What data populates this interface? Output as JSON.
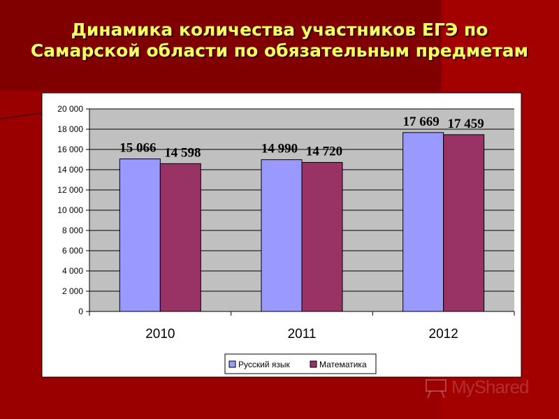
{
  "slide": {
    "title_line1": "Динамика количества участников ЕГЭ по",
    "title_line2": "Самарской области по обязательным предметам",
    "watermark": "MyShared"
  },
  "colors": {
    "background": "#a30000",
    "title": "#ffff66",
    "plot_area": "#c0c0c0",
    "series_1": "#9999ff",
    "series_2": "#993366"
  },
  "chart_data": {
    "type": "bar",
    "title": "",
    "xlabel": "",
    "ylabel": "",
    "categories": [
      "2010",
      "2011",
      "2012"
    ],
    "series": [
      {
        "name": "Русский язык",
        "values": [
          15066,
          14990,
          17669
        ],
        "labels": [
          "15 066",
          "14 990",
          "17 669"
        ],
        "color": "#9999ff"
      },
      {
        "name": "Математика",
        "values": [
          14598,
          14720,
          17459
        ],
        "labels": [
          "14 598",
          "14 720",
          "17 459"
        ],
        "color": "#993366"
      }
    ],
    "ylim": [
      0,
      20000
    ],
    "yticks": [
      0,
      2000,
      4000,
      6000,
      8000,
      10000,
      12000,
      14000,
      16000,
      18000,
      20000
    ],
    "ytick_labels": [
      "0",
      "2 000",
      "4 000",
      "6 000",
      "8 000",
      "10 000",
      "12 000",
      "14 000",
      "16 000",
      "18 000",
      "20 000"
    ],
    "grid": true,
    "legend": "bottom"
  }
}
